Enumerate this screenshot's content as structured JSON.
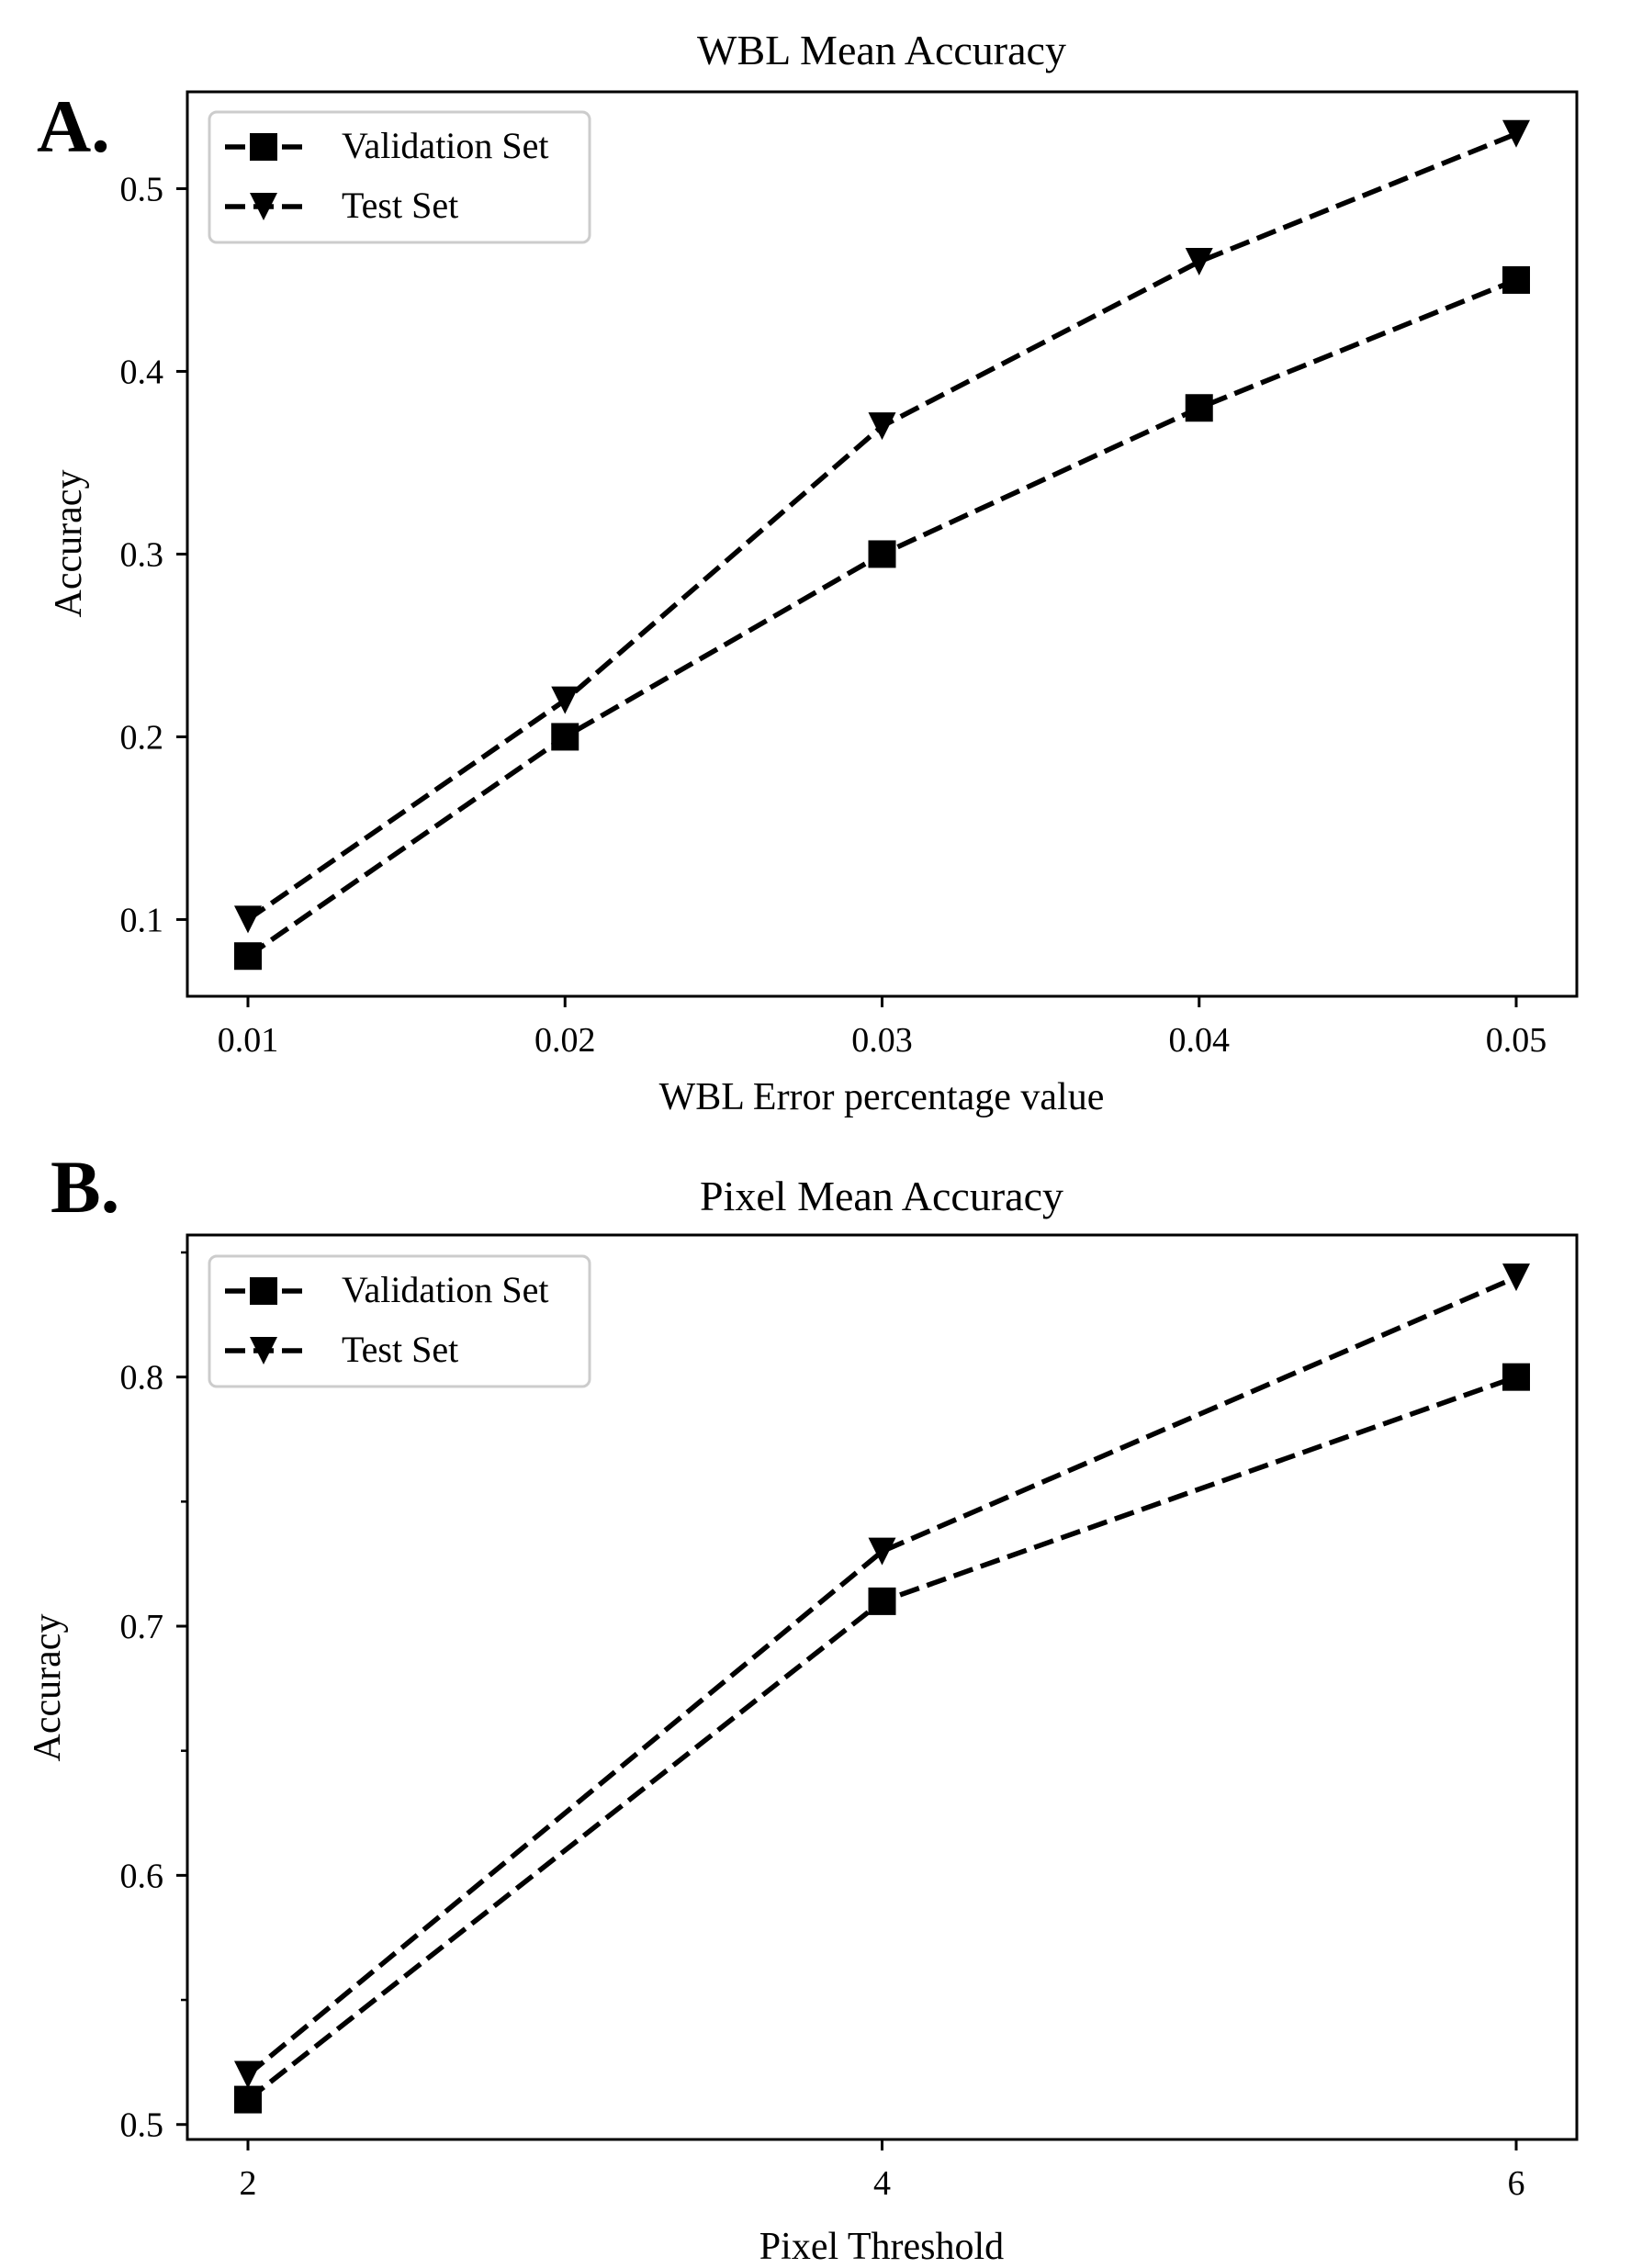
{
  "chart_data": [
    {
      "type": "line",
      "panel_label": "A.",
      "title": "WBL Mean Accuracy",
      "xlabel": "WBL Error percentage value",
      "ylabel": "Accuracy",
      "x": [
        0.01,
        0.02,
        0.03,
        0.04,
        0.05
      ],
      "x_ticks": [
        "0.01",
        "0.02",
        "0.03",
        "0.04",
        "0.05"
      ],
      "y_ticks": [
        0.1,
        0.2,
        0.3,
        0.4,
        0.5
      ],
      "y_tick_labels": [
        "0.1",
        "0.2",
        "0.3",
        "0.4",
        "0.5"
      ],
      "ylim": [
        0.058,
        0.553
      ],
      "y_minor_ticks": [],
      "grid": false,
      "legend_position": "top-left",
      "series": [
        {
          "name": "Validation Set",
          "marker": "square",
          "line_style": "dashed",
          "color": "#000000",
          "values": [
            0.08,
            0.2,
            0.3,
            0.38,
            0.45
          ]
        },
        {
          "name": "Test Set",
          "marker": "triangle-down",
          "line_style": "dashed",
          "color": "#000000",
          "values": [
            0.1,
            0.22,
            0.37,
            0.46,
            0.53
          ]
        }
      ]
    },
    {
      "type": "line",
      "panel_label": "B.",
      "title": "Pixel Mean Accuracy",
      "xlabel": "Pixel Threshold",
      "ylabel": "Accuracy",
      "x": [
        2,
        4,
        6
      ],
      "x_ticks": [
        "2",
        "4",
        "6"
      ],
      "y_ticks": [
        0.5,
        0.6,
        0.7,
        0.8
      ],
      "y_tick_labels": [
        "0.5",
        "0.6",
        "0.7",
        "0.8"
      ],
      "ylim": [
        0.494,
        0.857
      ],
      "y_minor_ticks": [
        0.55,
        0.65,
        0.75,
        0.85
      ],
      "grid": false,
      "legend_position": "top-left",
      "series": [
        {
          "name": "Validation Set",
          "marker": "square",
          "line_style": "dashed",
          "color": "#000000",
          "values": [
            0.51,
            0.71,
            0.8
          ]
        },
        {
          "name": "Test Set",
          "marker": "triangle-down",
          "line_style": "dashed",
          "color": "#000000",
          "values": [
            0.52,
            0.73,
            0.84
          ]
        }
      ]
    }
  ]
}
